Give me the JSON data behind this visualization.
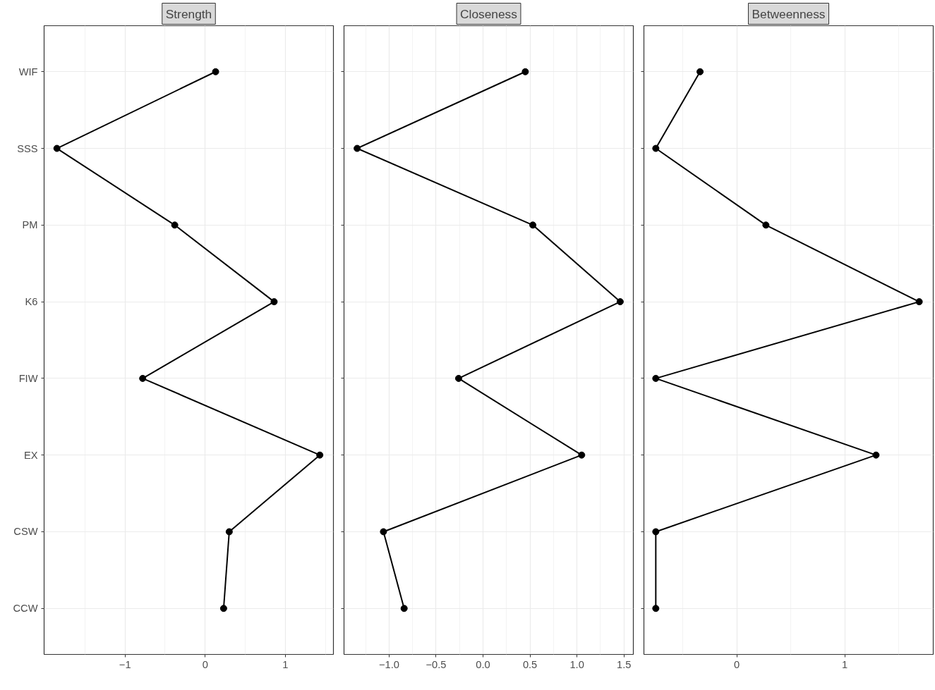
{
  "chart_data": [
    {
      "type": "line",
      "orientation": "horizontal",
      "title": "Strength",
      "categories": [
        "WIF",
        "SSS",
        "PM",
        "K6",
        "FIW",
        "EX",
        "CSW",
        "CCW"
      ],
      "values": [
        0.13,
        -1.85,
        -0.38,
        0.86,
        -0.78,
        1.43,
        0.3,
        0.23
      ],
      "color": "#000000",
      "marker": "circle",
      "grid": true,
      "xlim": [
        -2.01,
        1.6
      ],
      "xticks": [
        {
          "value": -1,
          "label": "−1"
        },
        {
          "value": 0,
          "label": "0"
        },
        {
          "value": 1,
          "label": "1"
        }
      ]
    },
    {
      "type": "line",
      "orientation": "horizontal",
      "title": "Closeness",
      "categories": [
        null,
        null,
        null,
        null,
        null,
        null,
        null,
        null
      ],
      "values": [
        0.45,
        -1.34,
        0.53,
        1.46,
        -0.26,
        1.05,
        -1.06,
        -0.84
      ],
      "color": "#000000",
      "marker": "circle",
      "grid": true,
      "tick_labels": "x",
      "xlim": [
        -1.48,
        1.6
      ],
      "xticks": [
        {
          "value": -1.0,
          "label": "−1.0"
        },
        {
          "value": -0.5,
          "label": "−0.5"
        },
        {
          "value": 0.0,
          "label": "0.0"
        },
        {
          "value": 0.5,
          "label": "0.5"
        },
        {
          "value": 1.0,
          "label": "1.0"
        },
        {
          "value": 1.5,
          "label": "1.5"
        }
      ]
    },
    {
      "type": "line",
      "orientation": "horizontal",
      "title": "Betweenness",
      "categories": [
        null,
        null,
        null,
        null,
        null,
        null,
        null,
        null
      ],
      "values": [
        -0.34,
        -0.75,
        0.27,
        1.69,
        -0.75,
        1.29,
        -0.75,
        -0.75
      ],
      "color": "#000000",
      "marker": "circle",
      "grid": true,
      "tick_labels": "x",
      "xlim": [
        -0.86,
        1.82
      ],
      "xticks": [
        {
          "value": 0,
          "label": "0"
        },
        {
          "value": 1,
          "label": "1"
        }
      ]
    }
  ]
}
